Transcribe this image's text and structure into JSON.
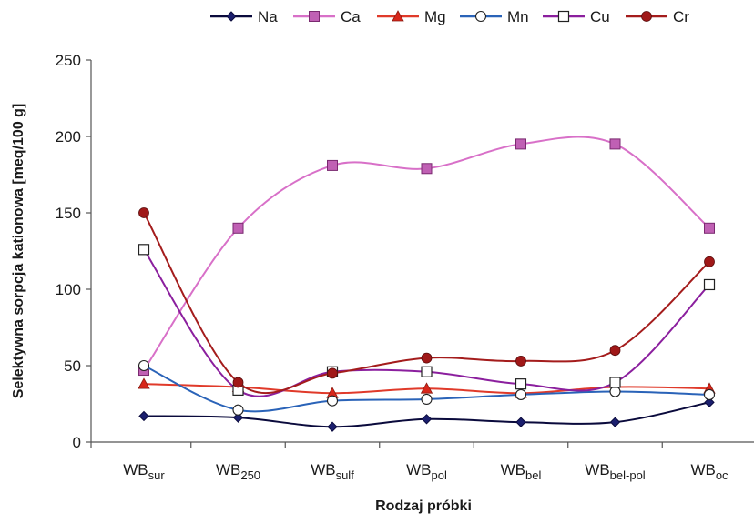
{
  "chart_data": {
    "type": "line",
    "smooth": true,
    "xlabel": "Rodzaj próbki",
    "ylabel": "Selektywna sorpcja kationowa [meq/100 g]",
    "ylim": [
      0,
      250
    ],
    "yticks": [
      0,
      50,
      100,
      150,
      200,
      250
    ],
    "grid": false,
    "legend_position": "top",
    "categories": [
      {
        "base": "WB",
        "sub": "sur"
      },
      {
        "base": "WB",
        "sub": "250"
      },
      {
        "base": "WB",
        "sub": "sulf"
      },
      {
        "base": "WB",
        "sub": "pol"
      },
      {
        "base": "WB",
        "sub": "bel"
      },
      {
        "base": "WB",
        "sub": "bel-pol"
      },
      {
        "base": "WB",
        "sub": "oc"
      }
    ],
    "series": [
      {
        "name": "Na",
        "color": "#0a0a3c",
        "marker": "diamond",
        "fill": "#1b1f6e",
        "values": [
          17,
          16,
          10,
          15,
          13,
          13,
          26
        ]
      },
      {
        "name": "Ca",
        "color": "#d870c8",
        "marker": "square",
        "fill": "#c060b4",
        "values": [
          47,
          140,
          181,
          179,
          195,
          195,
          140
        ]
      },
      {
        "name": "Mg",
        "color": "#e03a2a",
        "marker": "triangle",
        "fill": "#d8261a",
        "values": [
          38,
          36,
          32,
          35,
          32,
          36,
          35
        ]
      },
      {
        "name": "Mn",
        "color": "#2a63b8",
        "marker": "circle-open",
        "fill": "#ffffff",
        "values": [
          50,
          21,
          27,
          28,
          31,
          33,
          31
        ]
      },
      {
        "name": "Cu",
        "color": "#8b1f9e",
        "marker": "square-open",
        "fill": "#ffffff",
        "values": [
          126,
          34,
          46,
          46,
          38,
          39,
          103
        ]
      },
      {
        "name": "Cr",
        "color": "#a41c1c",
        "marker": "circle",
        "fill": "#a01818",
        "values": [
          150,
          39,
          45,
          55,
          53,
          60,
          118
        ]
      }
    ]
  }
}
